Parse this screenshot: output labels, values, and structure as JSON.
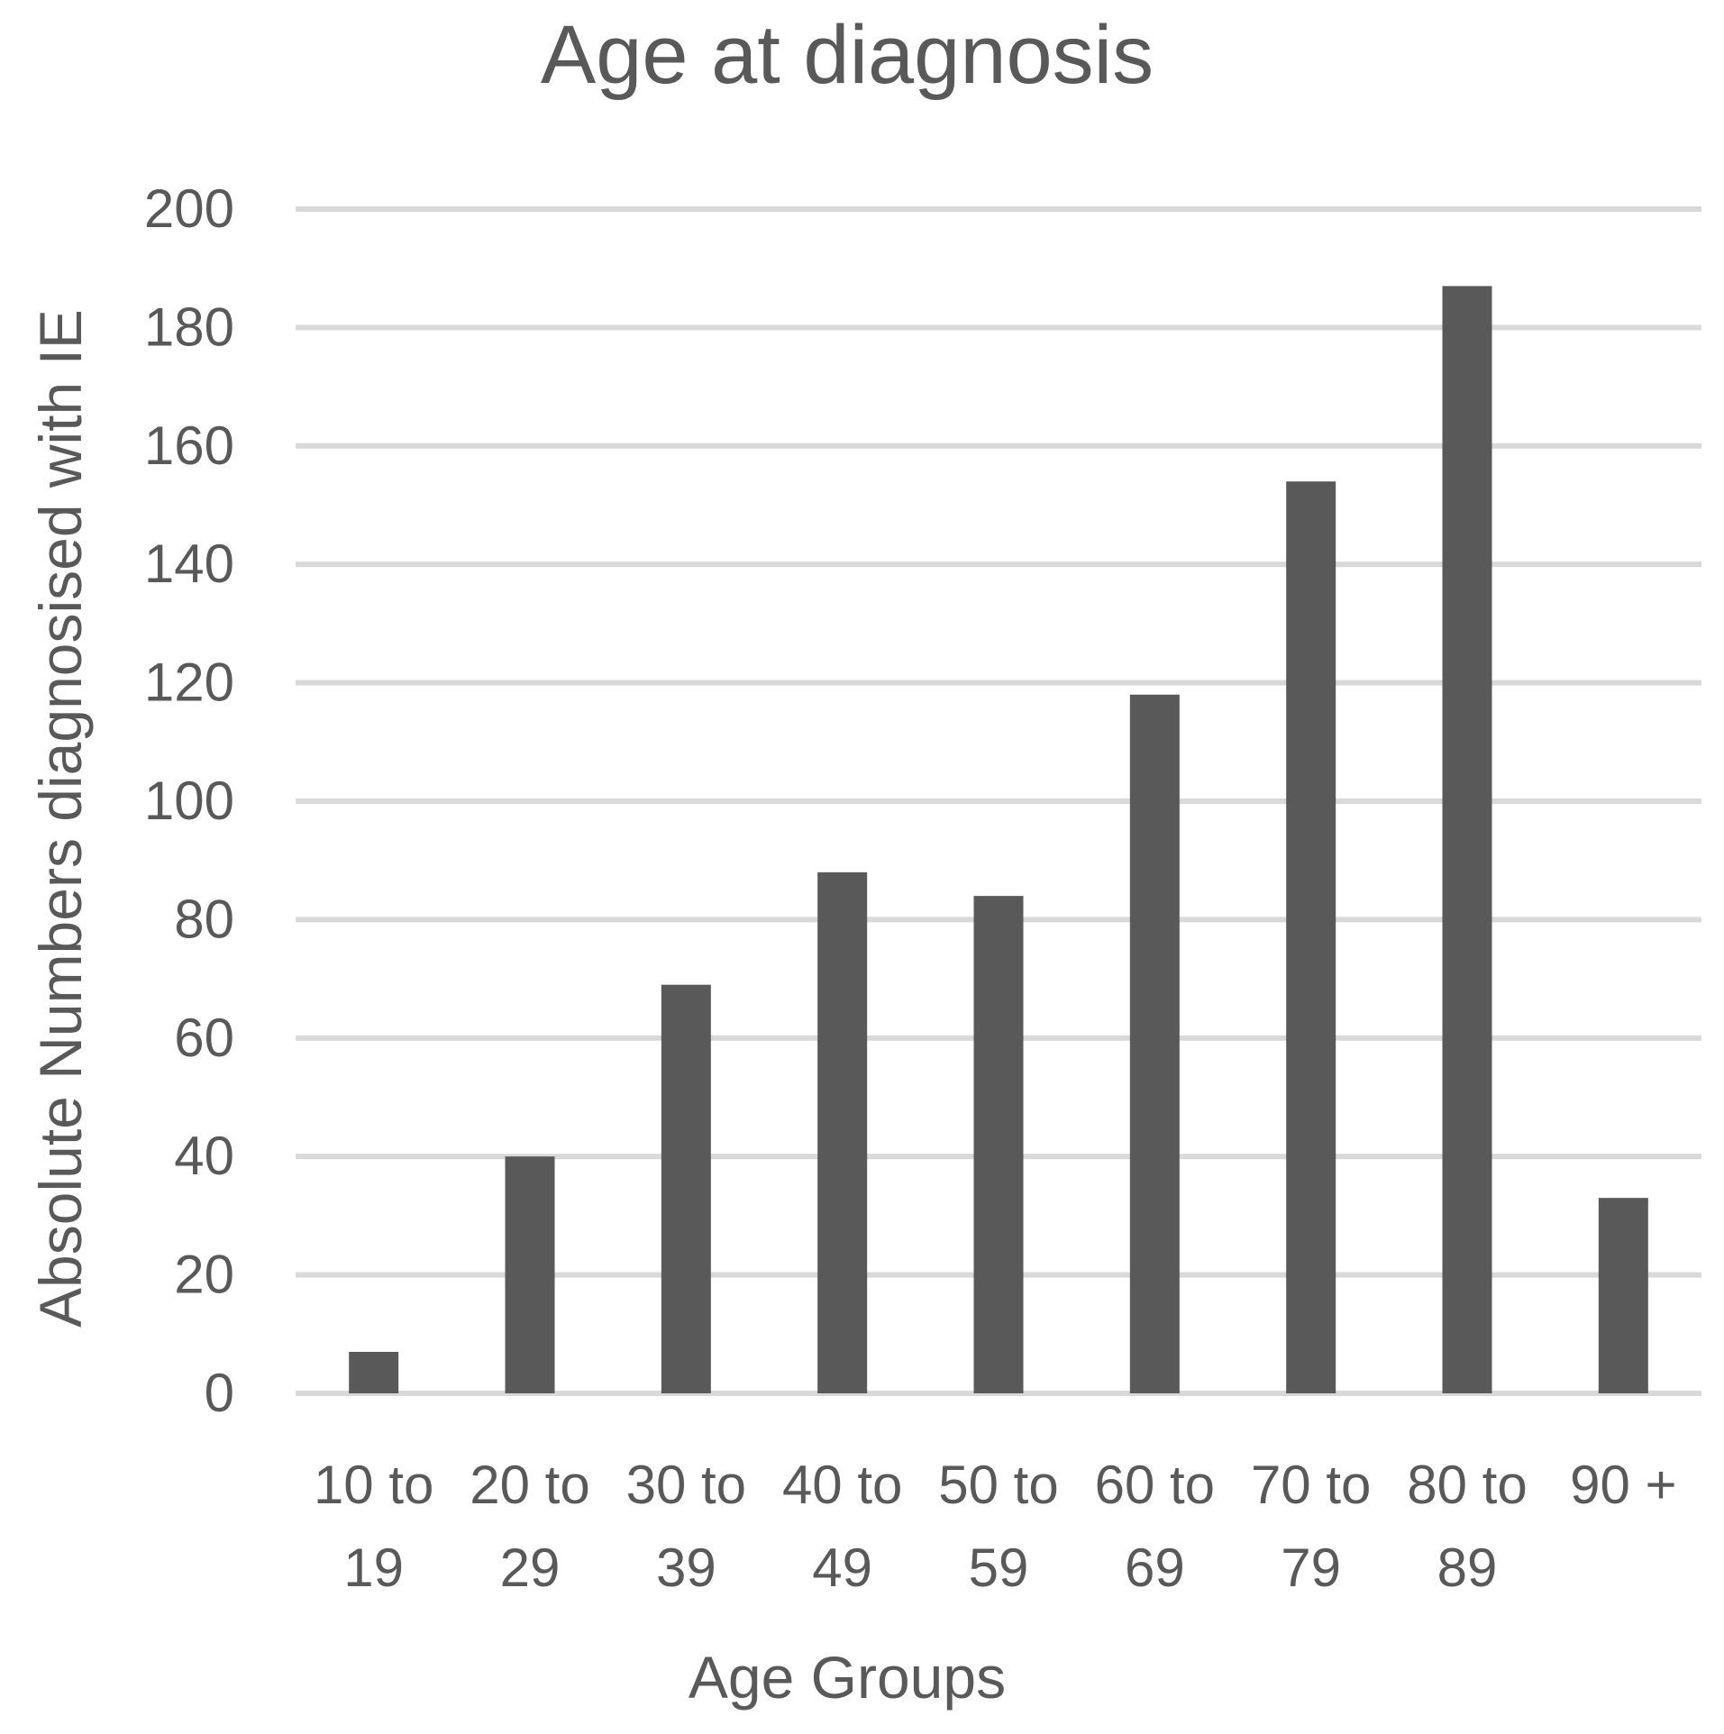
{
  "chart_data": {
    "type": "bar",
    "title": "Age at diagnosis",
    "xlabel": "Age Groups",
    "ylabel": "Absolute Numbers diagnosised with IE",
    "categories": [
      [
        "10 to",
        "19"
      ],
      [
        "20 to",
        "29"
      ],
      [
        "30 to",
        "39"
      ],
      [
        "40 to",
        "49"
      ],
      [
        "50 to",
        "59"
      ],
      [
        "60 to",
        "69"
      ],
      [
        "70 to",
        "79"
      ],
      [
        "80 to",
        "89"
      ],
      [
        "90 +"
      ]
    ],
    "values": [
      7,
      40,
      69,
      88,
      84,
      118,
      154,
      187,
      33
    ],
    "ylim": [
      0,
      200
    ],
    "yticks": [
      0,
      20,
      40,
      60,
      80,
      100,
      120,
      140,
      160,
      180,
      200
    ],
    "grid": true,
    "legend": "none",
    "colors": {
      "bar": "#595959",
      "grid": "#d9d9d9",
      "text": "#595959"
    }
  }
}
